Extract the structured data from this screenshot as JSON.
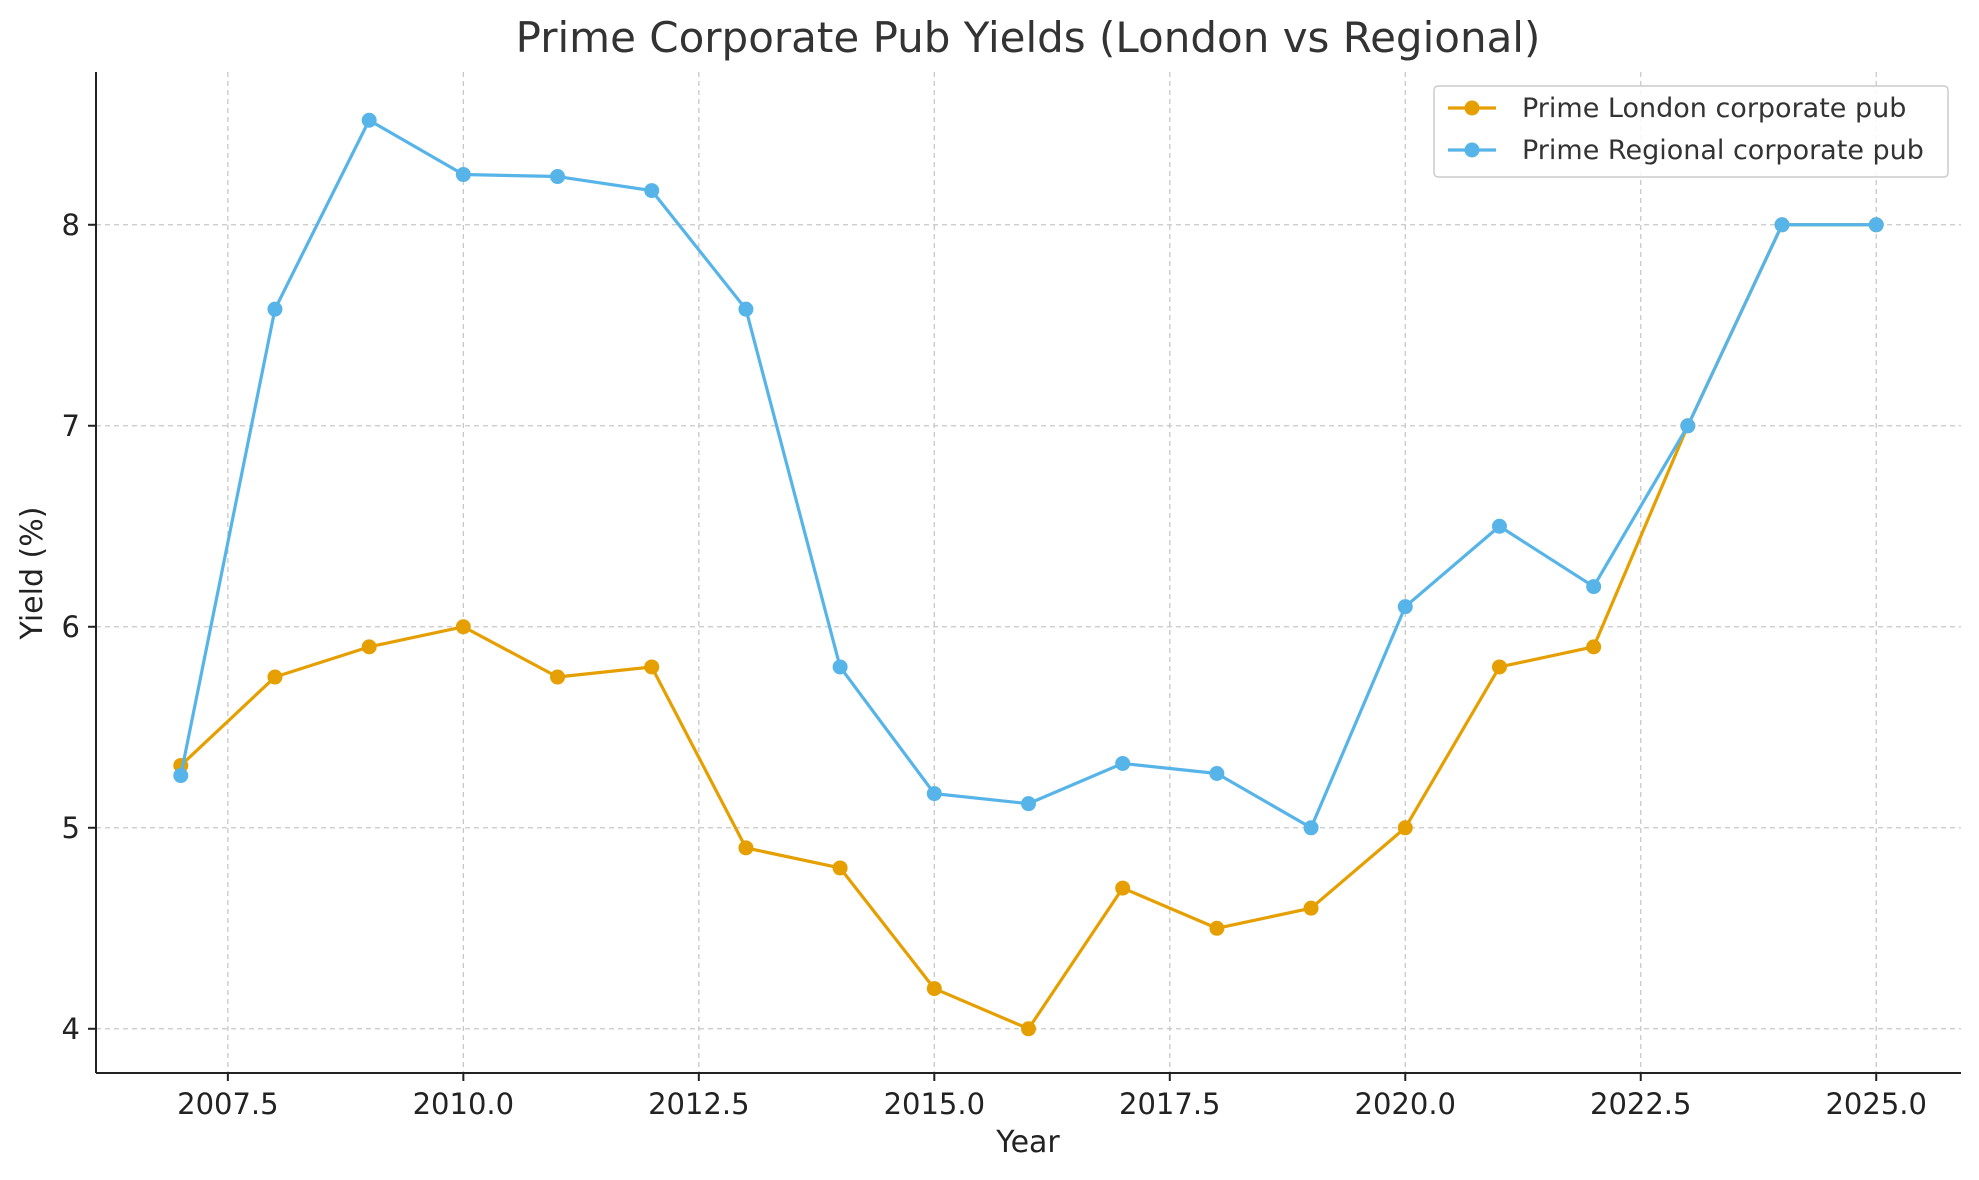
{
  "chart_data": {
    "type": "line",
    "title": "Prime Corporate Pub Yields (London vs Regional)",
    "xlabel": "Year",
    "ylabel": "Yield (%)",
    "xlim": [
      2006.1,
      2025.9
    ],
    "ylim": [
      3.78,
      8.76
    ],
    "x_ticks": [
      2007.5,
      2010.0,
      2012.5,
      2015.0,
      2017.5,
      2020.0,
      2022.5,
      2025.0
    ],
    "x_tick_labels": [
      "2007.5",
      "2010.0",
      "2012.5",
      "2015.0",
      "2017.5",
      "2020.0",
      "2022.5",
      "2025.0"
    ],
    "y_ticks": [
      4,
      5,
      6,
      7,
      8
    ],
    "y_tick_labels": [
      "4",
      "5",
      "6",
      "7",
      "8"
    ],
    "grid": true,
    "legend_position": "top-right",
    "x": [
      2007,
      2008,
      2009,
      2010,
      2011,
      2012,
      2013,
      2014,
      2015,
      2016,
      2017,
      2018,
      2019,
      2020,
      2021,
      2022,
      2023,
      2024,
      2025
    ],
    "series": [
      {
        "name": "Prime London corporate pub",
        "color": "#E69F00",
        "x": [
          2007,
          2008,
          2009,
          2010,
          2011,
          2012,
          2013,
          2014,
          2015,
          2016,
          2017,
          2018,
          2019,
          2020,
          2021,
          2022,
          2023,
          2024,
          2025
        ],
        "values": [
          5.31,
          5.75,
          5.9,
          6.0,
          5.75,
          5.8,
          4.9,
          4.8,
          4.2,
          4.0,
          4.7,
          4.5,
          4.6,
          5.0,
          5.8,
          5.9,
          7.0,
          8.0,
          8.0
        ]
      },
      {
        "name": "Prime Regional corporate pub",
        "color": "#56B4E9",
        "x": [
          2007,
          2008,
          2009,
          2010,
          2011,
          2012,
          2013,
          2014,
          2015,
          2016,
          2017,
          2018,
          2019,
          2020,
          2021,
          2022,
          2023,
          2024,
          2025
        ],
        "values": [
          5.26,
          7.58,
          8.52,
          8.25,
          8.24,
          8.17,
          7.58,
          5.8,
          5.17,
          5.12,
          5.32,
          5.27,
          5.0,
          6.1,
          6.5,
          6.2,
          7.0,
          8.0,
          8.0
        ]
      }
    ]
  }
}
